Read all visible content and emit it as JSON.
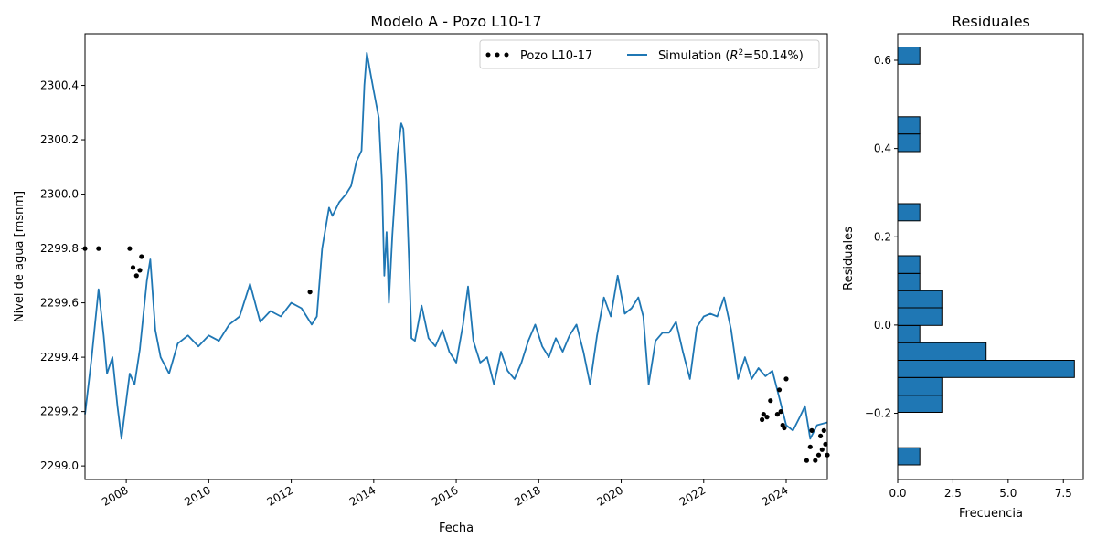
{
  "colors": {
    "series": "#1f77b4",
    "observed": "#000000",
    "bar_edge": "#000000"
  },
  "chart_data": [
    {
      "type": "line",
      "title": "Modelo A - Pozo L10-17",
      "xlabel": "Fecha",
      "ylabel": "Nivel de agua [msnm]",
      "xlim": [
        "2007-01-01",
        "2024-12-31"
      ],
      "ylim": [
        2298.95,
        2300.59
      ],
      "xticks": [
        "2008",
        "2010",
        "2012",
        "2014",
        "2016",
        "2018",
        "2020",
        "2022",
        "2024"
      ],
      "yticks": [
        "2299.0",
        "2299.2",
        "2299.4",
        "2299.6",
        "2299.8",
        "2300.0",
        "2300.2",
        "2300.4"
      ],
      "legend": {
        "position": "top-right",
        "observed_label": "Pozo L10-17",
        "sim_label_prefix": "Simulation (",
        "sim_label_r2": "R",
        "sim_label_sup": "2",
        "sim_label_suffix": "=50.14%)"
      },
      "series": [
        {
          "name": "Simulation (R²=50.14%)",
          "kind": "line",
          "points": [
            [
              "2007-01-01",
              2299.19
            ],
            [
              "2007-03-01",
              2299.4
            ],
            [
              "2007-05-01",
              2299.65
            ],
            [
              "2007-06-15",
              2299.48
            ],
            [
              "2007-07-15",
              2299.34
            ],
            [
              "2007-09-01",
              2299.4
            ],
            [
              "2007-10-15",
              2299.22
            ],
            [
              "2007-11-20",
              2299.1
            ],
            [
              "2008-01-01",
              2299.24
            ],
            [
              "2008-02-01",
              2299.34
            ],
            [
              "2008-03-15",
              2299.3
            ],
            [
              "2008-05-01",
              2299.43
            ],
            [
              "2008-07-01",
              2299.68
            ],
            [
              "2008-08-01",
              2299.76
            ],
            [
              "2008-09-15",
              2299.5
            ],
            [
              "2008-11-01",
              2299.4
            ],
            [
              "2009-01-15",
              2299.34
            ],
            [
              "2009-04-01",
              2299.45
            ],
            [
              "2009-07-01",
              2299.48
            ],
            [
              "2009-10-01",
              2299.44
            ],
            [
              "2010-01-01",
              2299.48
            ],
            [
              "2010-04-01",
              2299.46
            ],
            [
              "2010-07-01",
              2299.52
            ],
            [
              "2010-10-01",
              2299.55
            ],
            [
              "2011-01-01",
              2299.67
            ],
            [
              "2011-04-01",
              2299.53
            ],
            [
              "2011-07-01",
              2299.57
            ],
            [
              "2011-10-01",
              2299.55
            ],
            [
              "2012-01-01",
              2299.6
            ],
            [
              "2012-04-01",
              2299.58
            ],
            [
              "2012-07-01",
              2299.52
            ],
            [
              "2012-08-15",
              2299.55
            ],
            [
              "2012-10-01",
              2299.8
            ],
            [
              "2012-12-01",
              2299.95
            ],
            [
              "2013-01-01",
              2299.92
            ],
            [
              "2013-03-01",
              2299.97
            ],
            [
              "2013-05-01",
              2300.0
            ],
            [
              "2013-06-15",
              2300.03
            ],
            [
              "2013-08-01",
              2300.12
            ],
            [
              "2013-09-15",
              2300.16
            ],
            [
              "2013-10-10",
              2300.4
            ],
            [
              "2013-11-01",
              2300.52
            ],
            [
              "2013-12-01",
              2300.45
            ],
            [
              "2014-01-01",
              2300.38
            ],
            [
              "2014-02-15",
              2300.28
            ],
            [
              "2014-03-15",
              2300.05
            ],
            [
              "2014-04-05",
              2299.7
            ],
            [
              "2014-04-25",
              2299.86
            ],
            [
              "2014-05-15",
              2299.6
            ],
            [
              "2014-06-15",
              2299.85
            ],
            [
              "2014-08-01",
              2300.15
            ],
            [
              "2014-09-01",
              2300.26
            ],
            [
              "2014-09-20",
              2300.24
            ],
            [
              "2014-10-15",
              2300.05
            ],
            [
              "2014-11-10",
              2299.75
            ],
            [
              "2014-12-01",
              2299.47
            ],
            [
              "2015-01-01",
              2299.46
            ],
            [
              "2015-03-01",
              2299.59
            ],
            [
              "2015-05-01",
              2299.47
            ],
            [
              "2015-07-01",
              2299.44
            ],
            [
              "2015-09-01",
              2299.5
            ],
            [
              "2015-11-01",
              2299.42
            ],
            [
              "2016-01-01",
              2299.38
            ],
            [
              "2016-03-01",
              2299.52
            ],
            [
              "2016-04-15",
              2299.66
            ],
            [
              "2016-06-01",
              2299.46
            ],
            [
              "2016-08-01",
              2299.38
            ],
            [
              "2016-10-01",
              2299.4
            ],
            [
              "2016-12-01",
              2299.3
            ],
            [
              "2017-02-01",
              2299.42
            ],
            [
              "2017-04-01",
              2299.35
            ],
            [
              "2017-06-01",
              2299.32
            ],
            [
              "2017-08-01",
              2299.38
            ],
            [
              "2017-10-01",
              2299.46
            ],
            [
              "2017-12-01",
              2299.52
            ],
            [
              "2018-02-01",
              2299.44
            ],
            [
              "2018-04-01",
              2299.4
            ],
            [
              "2018-06-01",
              2299.47
            ],
            [
              "2018-08-01",
              2299.42
            ],
            [
              "2018-10-01",
              2299.48
            ],
            [
              "2018-12-01",
              2299.52
            ],
            [
              "2019-02-01",
              2299.42
            ],
            [
              "2019-04-01",
              2299.3
            ],
            [
              "2019-06-01",
              2299.48
            ],
            [
              "2019-08-01",
              2299.62
            ],
            [
              "2019-10-01",
              2299.55
            ],
            [
              "2019-12-01",
              2299.7
            ],
            [
              "2020-02-01",
              2299.56
            ],
            [
              "2020-04-01",
              2299.58
            ],
            [
              "2020-06-01",
              2299.62
            ],
            [
              "2020-07-15",
              2299.55
            ],
            [
              "2020-09-01",
              2299.3
            ],
            [
              "2020-11-01",
              2299.46
            ],
            [
              "2021-01-01",
              2299.49
            ],
            [
              "2021-03-01",
              2299.49
            ],
            [
              "2021-05-01",
              2299.53
            ],
            [
              "2021-07-01",
              2299.42
            ],
            [
              "2021-09-01",
              2299.32
            ],
            [
              "2021-11-01",
              2299.51
            ],
            [
              "2022-01-01",
              2299.55
            ],
            [
              "2022-03-01",
              2299.56
            ],
            [
              "2022-05-01",
              2299.55
            ],
            [
              "2022-07-01",
              2299.62
            ],
            [
              "2022-09-01",
              2299.5
            ],
            [
              "2022-11-01",
              2299.32
            ],
            [
              "2023-01-01",
              2299.4
            ],
            [
              "2023-03-01",
              2299.32
            ],
            [
              "2023-05-01",
              2299.36
            ],
            [
              "2023-07-01",
              2299.33
            ],
            [
              "2023-09-01",
              2299.35
            ],
            [
              "2023-11-01",
              2299.25
            ],
            [
              "2024-01-01",
              2299.15
            ],
            [
              "2024-03-01",
              2299.13
            ],
            [
              "2024-05-01",
              2299.18
            ],
            [
              "2024-06-15",
              2299.22
            ],
            [
              "2024-08-01",
              2299.1
            ],
            [
              "2024-10-01",
              2299.15
            ],
            [
              "2024-12-31",
              2299.16
            ]
          ]
        },
        {
          "name": "Pozo L10-17",
          "kind": "scatter",
          "points": [
            [
              "2007-01-01",
              2299.8
            ],
            [
              "2007-05-01",
              2299.8
            ],
            [
              "2008-02-01",
              2299.8
            ],
            [
              "2008-03-01",
              2299.73
            ],
            [
              "2008-04-01",
              2299.7
            ],
            [
              "2008-05-01",
              2299.72
            ],
            [
              "2008-05-15",
              2299.77
            ],
            [
              "2012-06-15",
              2299.64
            ],
            [
              "2023-06-01",
              2299.17
            ],
            [
              "2023-06-15",
              2299.19
            ],
            [
              "2023-07-15",
              2299.18
            ],
            [
              "2023-08-15",
              2299.24
            ],
            [
              "2023-10-15",
              2299.19
            ],
            [
              "2023-11-01",
              2299.28
            ],
            [
              "2023-11-15",
              2299.2
            ],
            [
              "2023-12-01",
              2299.15
            ],
            [
              "2023-12-15",
              2299.14
            ],
            [
              "2024-01-01",
              2299.32
            ],
            [
              "2024-07-01",
              2299.02
            ],
            [
              "2024-08-01",
              2299.07
            ],
            [
              "2024-08-15",
              2299.13
            ],
            [
              "2024-09-15",
              2299.02
            ],
            [
              "2024-10-15",
              2299.04
            ],
            [
              "2024-11-01",
              2299.11
            ],
            [
              "2024-11-15",
              2299.06
            ],
            [
              "2024-12-01",
              2299.13
            ],
            [
              "2024-12-15",
              2299.08
            ],
            [
              "2024-12-31",
              2299.04
            ]
          ]
        }
      ]
    },
    {
      "type": "bar",
      "orientation": "horizontal",
      "title": "Residuales",
      "xlabel": "Frecuencia",
      "ylabel": "Residuales",
      "xlim": [
        0,
        8.4
      ],
      "ylim": [
        -0.35,
        0.66
      ],
      "xticks": [
        "0.0",
        "2.5",
        "5.0",
        "7.5"
      ],
      "yticks": [
        "−0.2",
        "0.0",
        "0.2",
        "0.4",
        "0.6"
      ],
      "bins": [
        {
          "from": -0.317,
          "to": -0.278,
          "count": 1
        },
        {
          "from": -0.198,
          "to": -0.159,
          "count": 2
        },
        {
          "from": -0.159,
          "to": -0.119,
          "count": 2
        },
        {
          "from": -0.119,
          "to": -0.08,
          "count": 8
        },
        {
          "from": -0.08,
          "to": -0.04,
          "count": 4
        },
        {
          "from": -0.04,
          "to": -0.001,
          "count": 1
        },
        {
          "from": -0.001,
          "to": 0.039,
          "count": 2
        },
        {
          "from": 0.039,
          "to": 0.078,
          "count": 2
        },
        {
          "from": 0.078,
          "to": 0.117,
          "count": 1
        },
        {
          "from": 0.117,
          "to": 0.157,
          "count": 1
        },
        {
          "from": 0.236,
          "to": 0.275,
          "count": 1
        },
        {
          "from": 0.393,
          "to": 0.433,
          "count": 1
        },
        {
          "from": 0.433,
          "to": 0.472,
          "count": 1
        },
        {
          "from": 0.591,
          "to": 0.63,
          "count": 1
        }
      ]
    }
  ]
}
